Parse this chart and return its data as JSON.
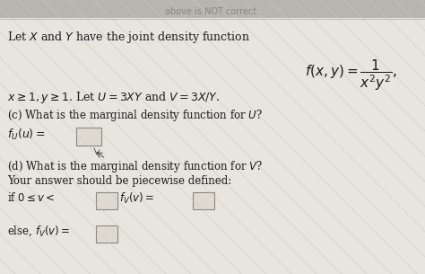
{
  "bg_top": "#c8c5bc",
  "bg_main": "#e8e5de",
  "bg_watermark_color": "#d4d0c8",
  "top_bar_color": "#b0ada5",
  "top_text": "above is NOT correct.",
  "top_text_color": "#888880",
  "line1": "Let $X$ and $Y$ have the joint density function",
  "formula": "$f(x, y) = \\dfrac{1}{x^2y^2},$",
  "line2": "$x \\geq 1, y \\geq 1$. Let $U = 3XY$ and $V = 3X/Y$.",
  "part_c_label": "(c) What is the marginal density function for $U$?",
  "part_c_fU": "$f_U(u) = $",
  "part_d_label": "(d) What is the marginal density function for $V$?",
  "part_d_sub": "Your answer should be piecewise defined:",
  "part_d_if": "if $0 \\leq v < $",
  "part_d_fv": "$f_V(v) = $",
  "part_d_else": "else, $f_V(v) = $",
  "text_color": "#1a1a1a",
  "box_edge": "#888880",
  "box_face": "#dedad2"
}
